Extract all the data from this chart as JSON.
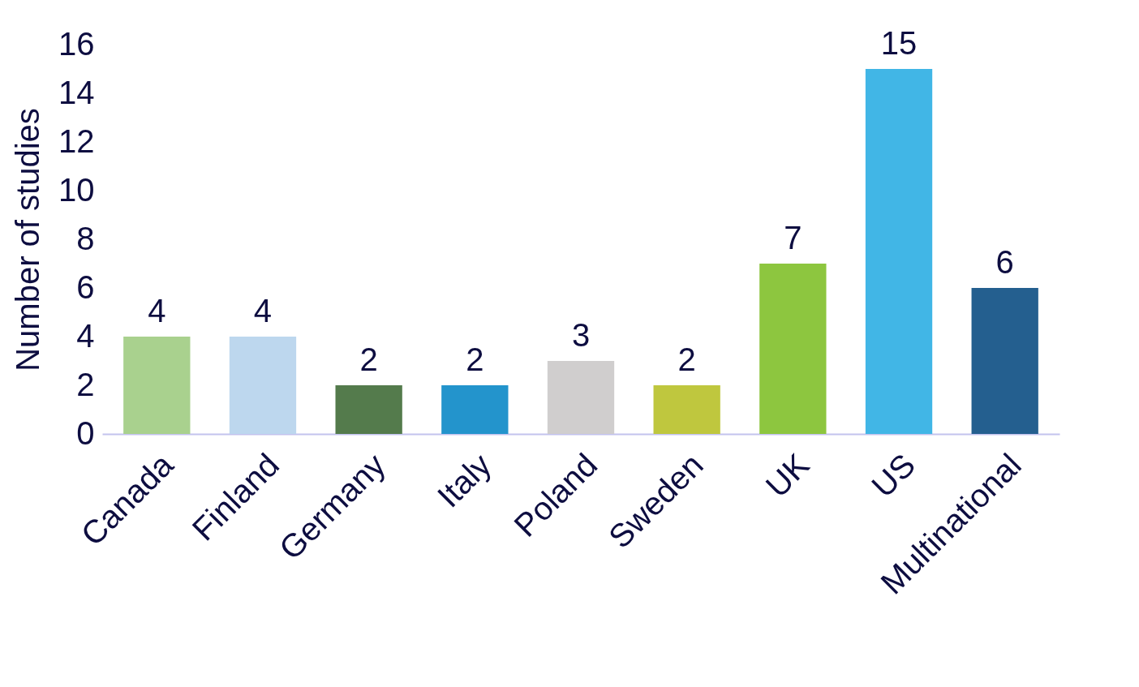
{
  "chart_data": {
    "type": "bar",
    "ylabel": "Number of studies",
    "categories": [
      "Canada",
      "Finland",
      "Germany",
      "Italy",
      "Poland",
      "Sweden",
      "UK",
      "US",
      "Multinational"
    ],
    "values": [
      4,
      4,
      2,
      2,
      3,
      2,
      7,
      15,
      6
    ],
    "colors": [
      "#a9d18e",
      "#bdd7ee",
      "#547b4c",
      "#2394cc",
      "#d0cece",
      "#bfc73e",
      "#8dc63f",
      "#41b6e6",
      "#245f8f"
    ],
    "ylim": [
      0,
      16
    ],
    "yticks": [
      0,
      2,
      4,
      6,
      8,
      10,
      12,
      14,
      16
    ],
    "data_labels": true
  }
}
